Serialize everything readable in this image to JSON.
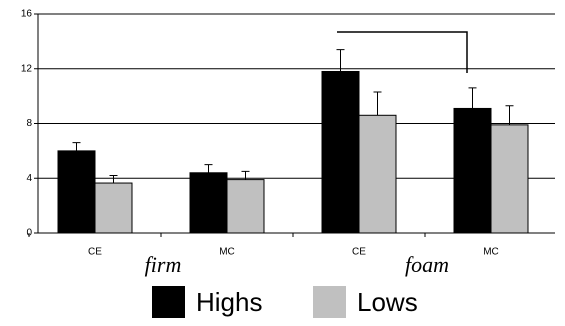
{
  "chart_data": {
    "type": "bar",
    "categories": [
      "CE",
      "MC",
      "CE",
      "MC"
    ],
    "group_labels": [
      "firm",
      "foam"
    ],
    "series": [
      {
        "name": "Highs",
        "color": "#000000",
        "values": [
          6.0,
          4.4,
          11.8,
          9.1
        ],
        "errors": [
          0.6,
          0.6,
          1.6,
          1.5
        ]
      },
      {
        "name": "Lows",
        "color": "#c0c0c0",
        "values": [
          3.65,
          3.9,
          8.6,
          7.9
        ],
        "errors": [
          0.55,
          0.6,
          1.7,
          1.4
        ]
      }
    ],
    "ylim": [
      0,
      16
    ],
    "yticks": [
      0,
      4,
      8,
      12,
      16
    ],
    "grid": true,
    "legend": "bottom"
  }
}
